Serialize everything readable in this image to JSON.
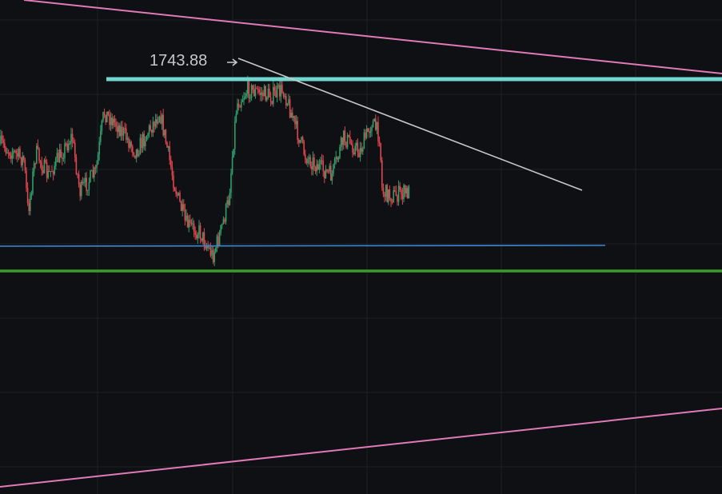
{
  "annotation": {
    "label": "1743.88"
  }
}
